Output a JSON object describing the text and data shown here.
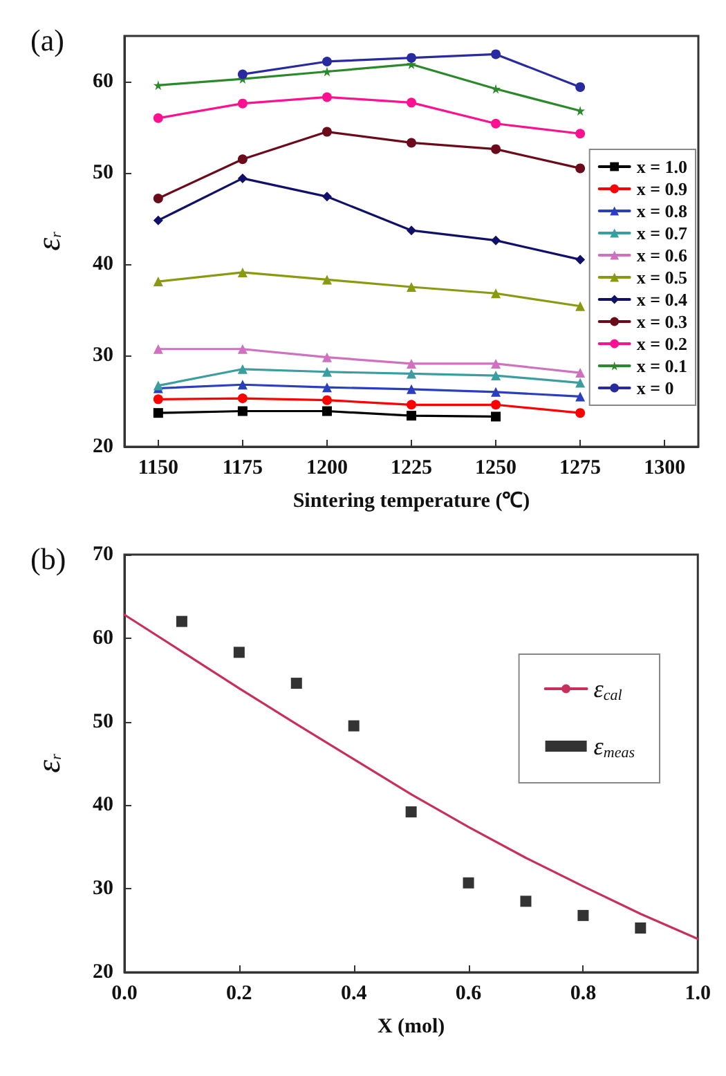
{
  "chart_data": [
    {
      "type": "line",
      "xlabel": "Sintering temperature (℃)",
      "ylabel": "ε$_{r}$",
      "annotations": [
        "(a)"
      ],
      "x": [
        1150,
        1175,
        1200,
        1225,
        1250,
        1275
      ],
      "xlim": [
        1140,
        1310
      ],
      "xticks": [
        1150,
        1175,
        1200,
        1225,
        1250,
        1275,
        1300
      ],
      "ylim": [
        20,
        65
      ],
      "yticks": [
        20,
        30,
        40,
        50,
        60
      ],
      "grid": false,
      "legend": "right",
      "series": [
        {
          "name": "x = 1.0",
          "color": "#000000",
          "marker": "square",
          "values": [
            23.7,
            23.9,
            23.9,
            23.4,
            23.3,
            null
          ]
        },
        {
          "name": "x = 0.9",
          "color": "#ff0000",
          "marker": "circle",
          "values": [
            25.2,
            25.3,
            25.1,
            24.6,
            24.6,
            23.7
          ]
        },
        {
          "name": "x = 0.8",
          "color": "#2a3fbf",
          "marker": "triangle",
          "values": [
            26.4,
            26.8,
            26.5,
            26.3,
            26.0,
            25.5
          ]
        },
        {
          "name": "x = 0.7",
          "color": "#3a9ea0",
          "marker": "triangle",
          "values": [
            26.7,
            28.5,
            28.2,
            28.0,
            27.8,
            27.0
          ]
        },
        {
          "name": "x = 0.6",
          "color": "#d070c0",
          "marker": "triangle",
          "values": [
            30.7,
            30.7,
            29.8,
            29.1,
            29.1,
            28.1
          ]
        },
        {
          "name": "x = 0.5",
          "color": "#8a9a10",
          "marker": "triangle",
          "values": [
            38.1,
            39.1,
            38.3,
            37.5,
            36.8,
            35.4
          ]
        },
        {
          "name": "x = 0.4",
          "color": "#10106a",
          "marker": "diamond",
          "values": [
            44.8,
            49.4,
            47.4,
            43.7,
            42.6,
            40.5
          ]
        },
        {
          "name": "x = 0.3",
          "color": "#6a0a1a",
          "marker": "circle",
          "values": [
            47.2,
            51.5,
            54.5,
            53.3,
            52.6,
            50.5
          ]
        },
        {
          "name": "x = 0.2",
          "color": "#ff1090",
          "marker": "circle",
          "values": [
            56.0,
            57.6,
            58.3,
            57.7,
            55.4,
            54.3
          ]
        },
        {
          "name": "x = 0.1",
          "color": "#2a8a2a",
          "marker": "star",
          "values": [
            59.6,
            60.3,
            61.1,
            61.9,
            59.2,
            56.8
          ]
        },
        {
          "name": "x = 0",
          "color": "#2a2aa0",
          "marker": "circle",
          "values": [
            null,
            60.8,
            62.2,
            62.6,
            63.0,
            59.4
          ]
        }
      ]
    },
    {
      "type": "scatter",
      "xlabel": "X (mol)",
      "ylabel": "ε$_{r}$",
      "annotations": [
        "(b)"
      ],
      "xlim": [
        0,
        1
      ],
      "xticks": [
        {
          "value": 0,
          "label": "0.0"
        },
        0.2,
        0.4,
        0.6,
        0.8,
        {
          "value": 1,
          "label": "1.0"
        }
      ],
      "ylim": [
        20,
        70
      ],
      "yticks": [
        20,
        30,
        40,
        50,
        60,
        70
      ],
      "grid": false,
      "legend": "right",
      "series": [
        {
          "name": "ε$_{cal}$",
          "type": "line",
          "color": "#c8305a",
          "marker": "none",
          "x": [
            0,
            0.1,
            0.2,
            0.3,
            0.4,
            0.5,
            0.6,
            0.7,
            0.8,
            0.9,
            1.0
          ],
          "values": [
            62.8,
            58.4,
            54.0,
            49.7,
            45.5,
            41.3,
            37.4,
            33.7,
            30.3,
            27.0,
            24.0
          ]
        },
        {
          "name": "ε$_{meas}$",
          "color": "#000000",
          "marker": "square",
          "x": [
            0.1,
            0.2,
            0.3,
            0.4,
            0.5,
            0.6,
            0.7,
            0.8,
            0.9
          ],
          "values": [
            62.0,
            58.3,
            54.6,
            49.5,
            39.2,
            30.7,
            28.5,
            26.8,
            25.3
          ]
        }
      ]
    }
  ]
}
